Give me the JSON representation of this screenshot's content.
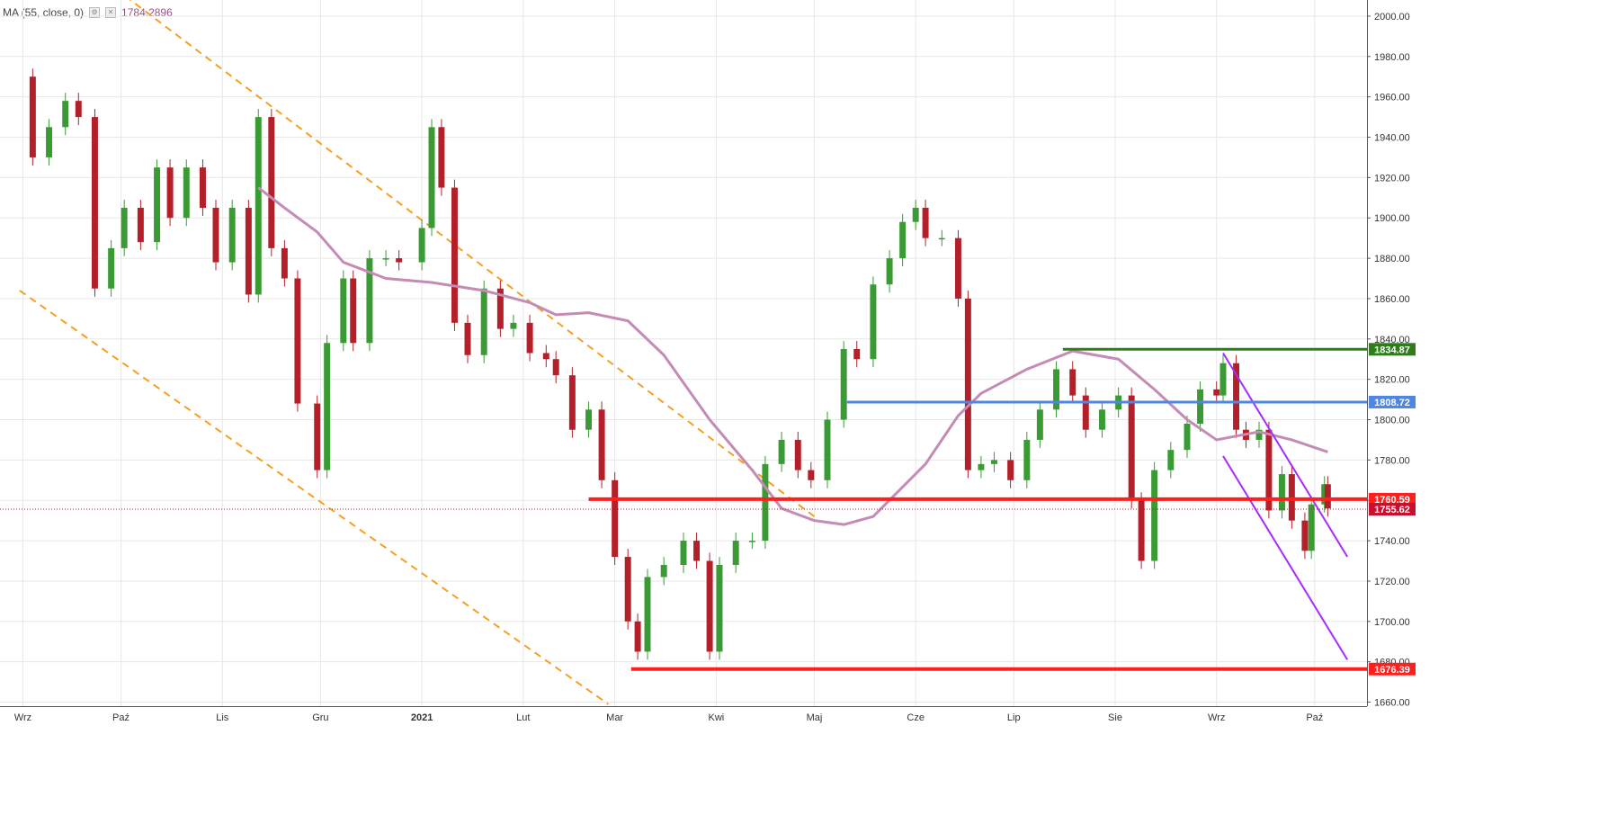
{
  "indicator": {
    "label": "MA (55, close, 0)",
    "value": "1784.2896",
    "settings_icon": "gear-icon",
    "hide_icon": "eye-off-icon"
  },
  "chart_data": {
    "type": "candlestick",
    "title": "",
    "xlabel": "",
    "ylabel": "",
    "ylim": [
      1658,
      2008
    ],
    "y_ticks": [
      "1660.00",
      "1680.00",
      "1700.00",
      "1720.00",
      "1740.00",
      "1760.00",
      "1780.00",
      "1800.00",
      "1820.00",
      "1840.00",
      "1860.00",
      "1880.00",
      "1900.00",
      "1920.00",
      "1940.00",
      "1960.00",
      "1980.00",
      "2000.00"
    ],
    "x_ticks": [
      {
        "label": "Wrz",
        "date": "2020-09-01"
      },
      {
        "label": "Paź",
        "date": "2020-10-01"
      },
      {
        "label": "Lis",
        "date": "2020-11-01"
      },
      {
        "label": "Gru",
        "date": "2020-12-01"
      },
      {
        "label": "2021",
        "date": "2021-01-01",
        "bold": true
      },
      {
        "label": "Lut",
        "date": "2021-02-01"
      },
      {
        "label": "Mar",
        "date": "2021-03-01"
      },
      {
        "label": "Kwi",
        "date": "2021-04-01"
      },
      {
        "label": "Maj",
        "date": "2021-05-01"
      },
      {
        "label": "Cze",
        "date": "2021-06-01"
      },
      {
        "label": "Lip",
        "date": "2021-07-01"
      },
      {
        "label": "Sie",
        "date": "2021-08-01"
      },
      {
        "label": "Wrz",
        "date": "2021-09-01"
      },
      {
        "label": "Paź",
        "date": "2021-10-01"
      }
    ],
    "price_series": [
      {
        "date": "2020-08-31",
        "close": 1970
      },
      {
        "date": "2020-09-04",
        "close": 1930
      },
      {
        "date": "2020-09-09",
        "close": 1945
      },
      {
        "date": "2020-09-14",
        "close": 1958
      },
      {
        "date": "2020-09-18",
        "close": 1950
      },
      {
        "date": "2020-09-23",
        "close": 1865
      },
      {
        "date": "2020-09-28",
        "close": 1885
      },
      {
        "date": "2020-10-02",
        "close": 1905
      },
      {
        "date": "2020-10-07",
        "close": 1888
      },
      {
        "date": "2020-10-12",
        "close": 1925
      },
      {
        "date": "2020-10-16",
        "close": 1900
      },
      {
        "date": "2020-10-21",
        "close": 1925
      },
      {
        "date": "2020-10-26",
        "close": 1905
      },
      {
        "date": "2020-10-30",
        "close": 1878
      },
      {
        "date": "2020-11-04",
        "close": 1905
      },
      {
        "date": "2020-11-09",
        "close": 1862
      },
      {
        "date": "2020-11-12",
        "close": 1950
      },
      {
        "date": "2020-11-16",
        "close": 1885
      },
      {
        "date": "2020-11-20",
        "close": 1870
      },
      {
        "date": "2020-11-24",
        "close": 1808
      },
      {
        "date": "2020-11-30",
        "close": 1775
      },
      {
        "date": "2020-12-03",
        "close": 1838
      },
      {
        "date": "2020-12-08",
        "close": 1870
      },
      {
        "date": "2020-12-11",
        "close": 1838
      },
      {
        "date": "2020-12-16",
        "close": 1880
      },
      {
        "date": "2020-12-21",
        "close": 1880
      },
      {
        "date": "2020-12-25",
        "close": 1878
      },
      {
        "date": "2021-01-01",
        "close": 1895
      },
      {
        "date": "2021-01-04",
        "close": 1945
      },
      {
        "date": "2021-01-07",
        "close": 1915
      },
      {
        "date": "2021-01-11",
        "close": 1848
      },
      {
        "date": "2021-01-15",
        "close": 1832
      },
      {
        "date": "2021-01-20",
        "close": 1865
      },
      {
        "date": "2021-01-25",
        "close": 1845
      },
      {
        "date": "2021-01-29",
        "close": 1848
      },
      {
        "date": "2021-02-03",
        "close": 1833
      },
      {
        "date": "2021-02-08",
        "close": 1830
      },
      {
        "date": "2021-02-11",
        "close": 1822
      },
      {
        "date": "2021-02-16",
        "close": 1795
      },
      {
        "date": "2021-02-21",
        "close": 1805
      },
      {
        "date": "2021-02-25",
        "close": 1770
      },
      {
        "date": "2021-03-01",
        "close": 1732
      },
      {
        "date": "2021-03-05",
        "close": 1700
      },
      {
        "date": "2021-03-08",
        "close": 1685
      },
      {
        "date": "2021-03-11",
        "close": 1722
      },
      {
        "date": "2021-03-16",
        "close": 1728
      },
      {
        "date": "2021-03-22",
        "close": 1740
      },
      {
        "date": "2021-03-26",
        "close": 1730
      },
      {
        "date": "2021-03-30",
        "close": 1685
      },
      {
        "date": "2021-04-02",
        "close": 1728
      },
      {
        "date": "2021-04-07",
        "close": 1740
      },
      {
        "date": "2021-04-12",
        "close": 1740
      },
      {
        "date": "2021-04-16",
        "close": 1778
      },
      {
        "date": "2021-04-21",
        "close": 1790
      },
      {
        "date": "2021-04-26",
        "close": 1775
      },
      {
        "date": "2021-04-30",
        "close": 1770
      },
      {
        "date": "2021-05-05",
        "close": 1800
      },
      {
        "date": "2021-05-10",
        "close": 1835
      },
      {
        "date": "2021-05-14",
        "close": 1830
      },
      {
        "date": "2021-05-19",
        "close": 1867
      },
      {
        "date": "2021-05-24",
        "close": 1880
      },
      {
        "date": "2021-05-28",
        "close": 1898
      },
      {
        "date": "2021-06-01",
        "close": 1905
      },
      {
        "date": "2021-06-04",
        "close": 1890
      },
      {
        "date": "2021-06-09",
        "close": 1890
      },
      {
        "date": "2021-06-14",
        "close": 1860
      },
      {
        "date": "2021-06-17",
        "close": 1775
      },
      {
        "date": "2021-06-21",
        "close": 1778
      },
      {
        "date": "2021-06-25",
        "close": 1780
      },
      {
        "date": "2021-06-30",
        "close": 1770
      },
      {
        "date": "2021-07-05",
        "close": 1790
      },
      {
        "date": "2021-07-09",
        "close": 1805
      },
      {
        "date": "2021-07-14",
        "close": 1825
      },
      {
        "date": "2021-07-19",
        "close": 1812
      },
      {
        "date": "2021-07-23",
        "close": 1795
      },
      {
        "date": "2021-07-28",
        "close": 1805
      },
      {
        "date": "2021-08-02",
        "close": 1812
      },
      {
        "date": "2021-08-06",
        "close": 1760
      },
      {
        "date": "2021-08-09",
        "close": 1730
      },
      {
        "date": "2021-08-13",
        "close": 1775
      },
      {
        "date": "2021-08-18",
        "close": 1785
      },
      {
        "date": "2021-08-23",
        "close": 1798
      },
      {
        "date": "2021-08-27",
        "close": 1815
      },
      {
        "date": "2021-09-01",
        "close": 1812
      },
      {
        "date": "2021-09-03",
        "close": 1828
      },
      {
        "date": "2021-09-07",
        "close": 1795
      },
      {
        "date": "2021-09-10",
        "close": 1790
      },
      {
        "date": "2021-09-14",
        "close": 1795
      },
      {
        "date": "2021-09-17",
        "close": 1755
      },
      {
        "date": "2021-09-21",
        "close": 1773
      },
      {
        "date": "2021-09-24",
        "close": 1750
      },
      {
        "date": "2021-09-28",
        "close": 1735
      },
      {
        "date": "2021-09-30",
        "close": 1758
      },
      {
        "date": "2021-10-04",
        "close": 1768
      },
      {
        "date": "2021-10-05",
        "close": 1756
      }
    ],
    "ma_series": [
      {
        "date": "2020-11-12",
        "value": 1915
      },
      {
        "date": "2020-11-20",
        "value": 1905
      },
      {
        "date": "2020-11-30",
        "value": 1893
      },
      {
        "date": "2020-12-08",
        "value": 1878
      },
      {
        "date": "2020-12-21",
        "value": 1870
      },
      {
        "date": "2021-01-04",
        "value": 1868
      },
      {
        "date": "2021-01-20",
        "value": 1864
      },
      {
        "date": "2021-02-03",
        "value": 1858
      },
      {
        "date": "2021-02-11",
        "value": 1852
      },
      {
        "date": "2021-02-21",
        "value": 1853
      },
      {
        "date": "2021-03-05",
        "value": 1849
      },
      {
        "date": "2021-03-16",
        "value": 1832
      },
      {
        "date": "2021-03-30",
        "value": 1800
      },
      {
        "date": "2021-04-12",
        "value": 1775
      },
      {
        "date": "2021-04-21",
        "value": 1756
      },
      {
        "date": "2021-05-01",
        "value": 1750
      },
      {
        "date": "2021-05-10",
        "value": 1748
      },
      {
        "date": "2021-05-19",
        "value": 1752
      },
      {
        "date": "2021-06-04",
        "value": 1778
      },
      {
        "date": "2021-06-14",
        "value": 1802
      },
      {
        "date": "2021-06-21",
        "value": 1813
      },
      {
        "date": "2021-07-05",
        "value": 1825
      },
      {
        "date": "2021-07-19",
        "value": 1834
      },
      {
        "date": "2021-08-02",
        "value": 1830
      },
      {
        "date": "2021-08-13",
        "value": 1815
      },
      {
        "date": "2021-08-23",
        "value": 1800
      },
      {
        "date": "2021-09-01",
        "value": 1790
      },
      {
        "date": "2021-09-14",
        "value": 1794
      },
      {
        "date": "2021-09-24",
        "value": 1790
      },
      {
        "date": "2021-10-05",
        "value": 1784
      }
    ],
    "horizontal_levels": [
      {
        "value": 1834.87,
        "label": "1834.87",
        "color": "#2e7d1a",
        "from_date": "2021-07-16"
      },
      {
        "value": 1808.72,
        "label": "1808.72",
        "color": "#4f86e3",
        "from_date": "2021-05-11"
      },
      {
        "value": 1760.59,
        "label": "1760.59",
        "color": "#ff1f1f",
        "from_date": "2021-02-21"
      },
      {
        "value": 1676.39,
        "label": "1676.39",
        "color": "#ff1f1f",
        "from_date": "2021-03-06"
      }
    ],
    "current_price": {
      "value": 1755.62,
      "label": "1755.62",
      "color": "#c8102e"
    },
    "trendlines_channel_orange": [
      {
        "from": {
          "date": "2020-09-20",
          "value": 2025
        },
        "to": {
          "date": "2021-05-01",
          "value": "1752"
        }
      },
      {
        "from": {
          "date": "2020-08-31",
          "value": 1864
        },
        "to": {
          "date": "2021-02-27",
          "value": "1659"
        }
      }
    ],
    "trendlines_channel_purple": [
      {
        "from": {
          "date": "2021-09-03",
          "value": 1833
        },
        "to": {
          "date": "2021-10-11",
          "value": 1732
        }
      },
      {
        "from": {
          "date": "2021-09-03",
          "value": 1782
        },
        "to": {
          "date": "2021-10-11",
          "value": 1681
        }
      }
    ],
    "colors": {
      "up": "#3a9b35",
      "down": "#b4202a",
      "ma": "#c48bb5",
      "orange": "#f5a021",
      "purple": "#a52bff",
      "grid": "#e7e7e7"
    }
  }
}
